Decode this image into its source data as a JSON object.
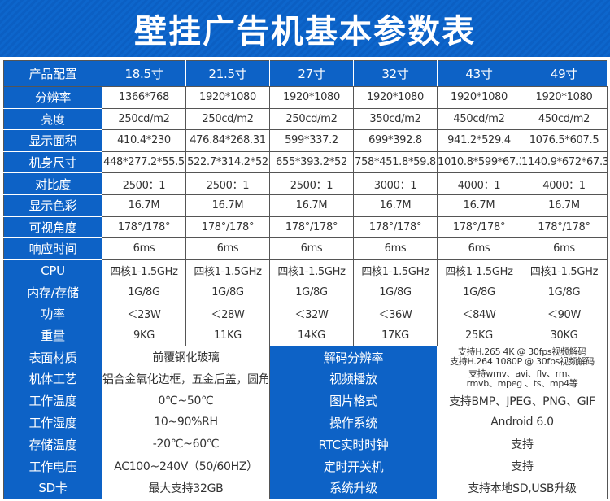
{
  "title": "壁挂广告机基本参数表",
  "header": [
    "产品配置",
    "18.5寸",
    "21.5寸",
    "27寸",
    "32寸",
    "43寸",
    "49寸"
  ],
  "rows": [
    {
      "label": "分辨率",
      "values": [
        "1366*768",
        "1920*1080",
        "1920*1080",
        "1920*1080",
        "1920*1080",
        "1920*1080"
      ]
    },
    {
      "label": "亮度",
      "values": [
        "250cd/m2",
        "250cd/m2",
        "250cd/m2",
        "350cd/m2",
        "450cd/m2",
        "450cd/m2"
      ]
    },
    {
      "label": "显示面积",
      "values": [
        "410.4*230",
        "476.84*268.31",
        "599*337.2",
        "699*392.8",
        "941.2*529.4",
        "1076.5*607.5"
      ]
    },
    {
      "label": "机身尺寸",
      "values": [
        "448*277.2*55.5",
        "522.7*314.2*52",
        "655*393.2*52",
        "758*451.8*59.8",
        "1010.8*599*67.3",
        "1140.9*672*67.3"
      ]
    },
    {
      "label": "对比度",
      "values": [
        "2500：1",
        "2500：1",
        "2500：1",
        "3000：1",
        "4000：1",
        "4000：1"
      ]
    },
    {
      "label": "显示色彩",
      "values": [
        "16.7M",
        "16.7M",
        "16.7M",
        "16.7M",
        "16.7M",
        "16.7M"
      ]
    },
    {
      "label": "可视角度",
      "values": [
        "178°/178°",
        "178°/178°",
        "178°/178°",
        "178°/178°",
        "178°/178°",
        "178°/178°"
      ]
    },
    {
      "label": "响应时间",
      "values": [
        "6ms",
        "6ms",
        "6ms",
        "6ms",
        "6ms",
        "6ms"
      ]
    },
    {
      "label": "CPU",
      "values": [
        "四核1-1.5GHz",
        "四核1-1.5GHz",
        "四核1-1.5GHz",
        "四核1-1.5GHz",
        "四核1-1.5GHz",
        "四核1-1.5GHz"
      ]
    },
    {
      "label": "内存/存储",
      "values": [
        "1G/8G",
        "1G/8G",
        "1G/8G",
        "1G/8G",
        "1G/8G",
        "1G/8G"
      ]
    },
    {
      "label": "功率",
      "values": [
        "＜23W",
        "＜28W",
        "＜32W",
        "＜36W",
        "＜84W",
        "＜90W"
      ]
    },
    {
      "label": "重量",
      "values": [
        "9KG",
        "11KG",
        "14KG",
        "17KG",
        "25KG",
        "30KG"
      ]
    }
  ],
  "bottom": [
    {
      "l_label": "表面材质",
      "l_value": "前覆钢化玻璃",
      "r_label": "解码分辨率",
      "r_value": [
        "支持H.265 4K @ 30fps视频解码",
        "支持H.264 1080P @ 30fps视频解码"
      ]
    },
    {
      "l_label": "机体工艺",
      "l_value": "铝合金氧化边框，五金后盖，圆角",
      "r_label": "视频播放",
      "r_value": [
        "支持wmv、avi、flv、rm、",
        "rmvb、mpeg 、ts、mp4等"
      ]
    },
    {
      "l_label": "工作温度",
      "l_value": "0℃~50℃",
      "r_label": "图片格式",
      "r_value": [
        "支持BMP、JPEG、PNG、GIF"
      ]
    },
    {
      "l_label": "工作湿度",
      "l_value": "10~90%RH",
      "r_label": "操作系统",
      "r_value": [
        "Android 6.0"
      ]
    },
    {
      "l_label": "存储温度",
      "l_value": "-20℃~60℃",
      "r_label": "RTC实时时钟",
      "r_value": [
        "支持"
      ]
    },
    {
      "l_label": "工作电压",
      "l_value": "AC100~240V（50/60HZ）",
      "r_label": "定时开关机",
      "r_value": [
        "支持"
      ]
    },
    {
      "l_label": "SD卡",
      "l_value": "最大支持32GB",
      "r_label": "系统升级",
      "r_value": [
        "支持本地SD,USB升级"
      ]
    }
  ],
  "colors": {
    "accent": "#0d62c6"
  }
}
